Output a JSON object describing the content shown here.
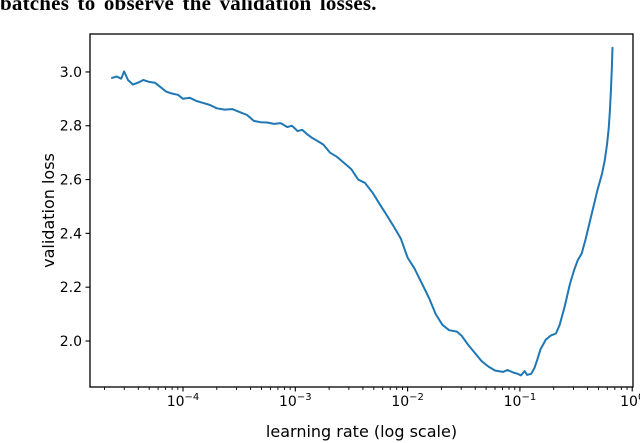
{
  "caption": {
    "text": "batches to observe the validation losses."
  },
  "chart_data": {
    "type": "line",
    "title": "",
    "xlabel": "learning rate (log scale)",
    "ylabel": "validation loss",
    "x_scale": "log",
    "grid": false,
    "legend": "none",
    "line_color": "#1f77b4",
    "axis_color": "#000000",
    "xlim_log10": [
      -4.828,
      0.007
    ],
    "ylim": [
      1.829,
      3.141
    ],
    "x_ticks": [
      {
        "value": 0.0001,
        "label": "10^−4"
      },
      {
        "value": 0.001,
        "label": "10^−3"
      },
      {
        "value": 0.01,
        "label": "10^−2"
      },
      {
        "value": 0.1,
        "label": "10^−1"
      },
      {
        "value": 1.0,
        "label": "10^0"
      }
    ],
    "y_ticks": [
      {
        "value": 2.0,
        "label": "2.0"
      },
      {
        "value": 2.2,
        "label": "2.2"
      },
      {
        "value": 2.4,
        "label": "2.4"
      },
      {
        "value": 2.6,
        "label": "2.6"
      },
      {
        "value": 2.8,
        "label": "2.8"
      },
      {
        "value": 3.0,
        "label": "3.0"
      }
    ],
    "series": [
      {
        "name": "validation loss",
        "points": [
          [
            2.33e-05,
            2.978
          ],
          [
            2.57e-05,
            2.983
          ],
          [
            2.82e-05,
            2.975
          ],
          [
            2.99e-05,
            3.002
          ],
          [
            3.24e-05,
            2.97
          ],
          [
            3.59e-05,
            2.953
          ],
          [
            4.07e-05,
            2.962
          ],
          [
            4.42e-05,
            2.97
          ],
          [
            5.01e-05,
            2.963
          ],
          [
            5.62e-05,
            2.96
          ],
          [
            6.24e-05,
            2.945
          ],
          [
            7.08e-05,
            2.927
          ],
          [
            7.94e-05,
            2.92
          ],
          [
            9.02e-05,
            2.915
          ],
          [
            0.0001,
            2.9
          ],
          [
            0.000115,
            2.904
          ],
          [
            0.000132,
            2.892
          ],
          [
            0.000151,
            2.885
          ],
          [
            0.000174,
            2.877
          ],
          [
            0.0002,
            2.865
          ],
          [
            0.000234,
            2.86
          ],
          [
            0.000275,
            2.862
          ],
          [
            0.000324,
            2.85
          ],
          [
            0.000372,
            2.84
          ],
          [
            0.000427,
            2.818
          ],
          [
            0.00049,
            2.813
          ],
          [
            0.000562,
            2.812
          ],
          [
            0.000646,
            2.807
          ],
          [
            0.000741,
            2.81
          ],
          [
            0.000851,
            2.795
          ],
          [
            0.000933,
            2.8
          ],
          [
            0.00105,
            2.78
          ],
          [
            0.00115,
            2.785
          ],
          [
            0.00126,
            2.77
          ],
          [
            0.00141,
            2.755
          ],
          [
            0.00155,
            2.745
          ],
          [
            0.00178,
            2.73
          ],
          [
            0.00204,
            2.7
          ],
          [
            0.00234,
            2.685
          ],
          [
            0.00275,
            2.66
          ],
          [
            0.00316,
            2.638
          ],
          [
            0.00363,
            2.6
          ],
          [
            0.00417,
            2.588
          ],
          [
            0.0049,
            2.55
          ],
          [
            0.00562,
            2.51
          ],
          [
            0.00646,
            2.47
          ],
          [
            0.00741,
            2.43
          ],
          [
            0.00871,
            2.38
          ],
          [
            0.01,
            2.31
          ],
          [
            0.0115,
            2.27
          ],
          [
            0.0132,
            2.22
          ],
          [
            0.0155,
            2.16
          ],
          [
            0.0178,
            2.1
          ],
          [
            0.0204,
            2.06
          ],
          [
            0.0234,
            2.04
          ],
          [
            0.0275,
            2.035
          ],
          [
            0.0302,
            2.02
          ],
          [
            0.0347,
            1.985
          ],
          [
            0.0398,
            1.955
          ],
          [
            0.0457,
            1.925
          ],
          [
            0.0525,
            1.905
          ],
          [
            0.0603,
            1.89
          ],
          [
            0.0708,
            1.885
          ],
          [
            0.0776,
            1.892
          ],
          [
            0.0871,
            1.883
          ],
          [
            0.0955,
            1.878
          ],
          [
            0.102,
            1.872
          ],
          [
            0.11,
            1.888
          ],
          [
            0.116,
            1.874
          ],
          [
            0.126,
            1.878
          ],
          [
            0.135,
            1.9
          ],
          [
            0.143,
            1.932
          ],
          [
            0.153,
            1.97
          ],
          [
            0.17,
            2.005
          ],
          [
            0.188,
            2.02
          ],
          [
            0.209,
            2.028
          ],
          [
            0.226,
            2.06
          ],
          [
            0.251,
            2.13
          ],
          [
            0.278,
            2.21
          ],
          [
            0.302,
            2.26
          ],
          [
            0.327,
            2.3
          ],
          [
            0.355,
            2.325
          ],
          [
            0.385,
            2.38
          ],
          [
            0.417,
            2.44
          ],
          [
            0.452,
            2.5
          ],
          [
            0.49,
            2.56
          ],
          [
            0.537,
            2.62
          ],
          [
            0.569,
            2.67
          ],
          [
            0.596,
            2.73
          ],
          [
            0.617,
            2.79
          ],
          [
            0.631,
            2.85
          ],
          [
            0.646,
            2.93
          ],
          [
            0.658,
            3.01
          ],
          [
            0.668,
            3.09
          ]
        ]
      }
    ]
  }
}
